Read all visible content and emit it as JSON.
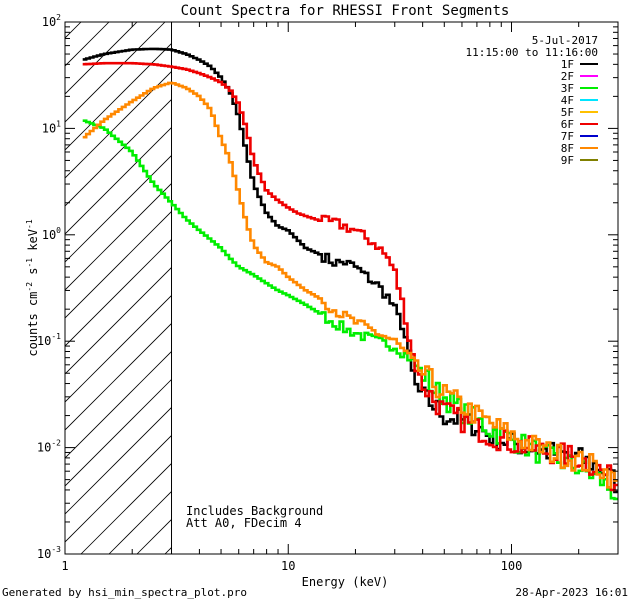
{
  "chart_data": {
    "type": "line",
    "title": "Count Spectra for RHESSI Front Segments",
    "xlabel": "Energy (keV)",
    "ylabel_parts": [
      "counts cm",
      "-2",
      " s",
      "-1",
      " keV",
      "-1"
    ],
    "xscale": "log",
    "yscale": "log",
    "xlim": [
      1,
      300
    ],
    "ylim": [
      0.001,
      100
    ],
    "x_ticks": [
      {
        "value": 1,
        "label": "1"
      },
      {
        "value": 10,
        "label": "10"
      },
      {
        "value": 100,
        "label": "100"
      }
    ],
    "y_ticks": [
      {
        "value": 0.001,
        "base": "10",
        "exp": "-3"
      },
      {
        "value": 0.01,
        "base": "10",
        "exp": "-2"
      },
      {
        "value": 0.1,
        "base": "10",
        "exp": "-1"
      },
      {
        "value": 1,
        "base": "10",
        "exp": "0"
      },
      {
        "value": 10,
        "base": "10",
        "exp": "1"
      },
      {
        "value": 100,
        "base": "10",
        "exp": "2"
      }
    ],
    "shaded_region": {
      "xmin": 1,
      "xmax": 3,
      "style": "diagonal-hatch"
    },
    "vertical_line_at": 3,
    "legend_header": [
      "5-Jul-2017",
      "11:15:00 to 11:16:00"
    ],
    "legend_position": "top-right",
    "annotations": [
      "Includes Background",
      "Att A0, FDecim 4"
    ],
    "series": [
      {
        "name": "1F",
        "color": "#000000",
        "x": [
          1.2,
          1.5,
          2,
          2.5,
          3,
          3.5,
          4,
          4.5,
          5,
          5.5,
          6,
          6.5,
          7,
          8,
          9,
          10,
          11,
          12,
          14,
          16,
          18,
          20,
          22,
          25,
          28,
          30,
          33,
          35,
          37,
          40,
          45,
          50,
          60,
          70,
          80,
          100,
          120,
          150,
          200,
          250,
          300
        ],
        "y": [
          44,
          50,
          55,
          56,
          55,
          50,
          44,
          38,
          30,
          22,
          13,
          6,
          3,
          1.6,
          1.2,
          1.1,
          0.9,
          0.75,
          0.65,
          0.55,
          0.55,
          0.5,
          0.42,
          0.34,
          0.26,
          0.2,
          0.13,
          0.07,
          0.04,
          0.03,
          0.025,
          0.02,
          0.018,
          0.016,
          0.013,
          0.011,
          0.01,
          0.009,
          0.008,
          0.0065,
          0.0045
        ]
      },
      {
        "name": "2F",
        "color": "#ff00ff",
        "x": [],
        "y": []
      },
      {
        "name": "3F",
        "color": "#00ee00",
        "x": [
          1.2,
          1.5,
          2,
          2.5,
          3,
          3.5,
          4,
          4.5,
          5,
          5.5,
          6,
          7,
          8,
          9,
          10,
          12,
          14,
          16,
          18,
          20,
          22,
          25,
          30,
          35,
          40,
          45,
          50,
          60,
          70,
          80,
          100,
          120,
          150,
          200,
          250,
          300
        ],
        "y": [
          12,
          10,
          6,
          3,
          2,
          1.4,
          1.1,
          0.9,
          0.75,
          0.6,
          0.5,
          0.42,
          0.35,
          0.3,
          0.27,
          0.22,
          0.18,
          0.15,
          0.13,
          0.12,
          0.11,
          0.1,
          0.09,
          0.07,
          0.05,
          0.035,
          0.03,
          0.022,
          0.018,
          0.015,
          0.012,
          0.01,
          0.008,
          0.0065,
          0.005,
          0.0035
        ]
      },
      {
        "name": "4F",
        "color": "#00e5ff",
        "x": [],
        "y": []
      },
      {
        "name": "5F",
        "color": "#ffc000",
        "x": [],
        "y": []
      },
      {
        "name": "6F",
        "color": "#ee0000",
        "x": [
          1.2,
          1.5,
          2,
          2.5,
          3,
          3.5,
          4,
          4.5,
          5,
          5.5,
          6,
          6.5,
          7,
          8,
          9,
          10,
          11,
          12,
          14,
          16,
          18,
          20,
          22,
          25,
          28,
          30,
          33,
          35,
          37,
          40,
          45,
          50,
          60,
          70,
          80,
          100,
          120,
          150,
          200,
          250,
          300
        ],
        "y": [
          40,
          41,
          41,
          40,
          38,
          36,
          33,
          30,
          27,
          23,
          17,
          10,
          5,
          2.6,
          2.1,
          1.8,
          1.6,
          1.5,
          1.35,
          1.3,
          1.2,
          1.1,
          0.95,
          0.8,
          0.6,
          0.45,
          0.2,
          0.1,
          0.06,
          0.04,
          0.028,
          0.022,
          0.018,
          0.015,
          0.013,
          0.011,
          0.01,
          0.009,
          0.008,
          0.0062,
          0.0045
        ]
      },
      {
        "name": "7F",
        "color": "#0000cc",
        "x": [],
        "y": []
      },
      {
        "name": "8F",
        "color": "#ff8800",
        "x": [
          1.2,
          1.5,
          2,
          2.5,
          3,
          3.5,
          4,
          4.5,
          5,
          5.5,
          6,
          6.5,
          7,
          8,
          9,
          10,
          12,
          14,
          16,
          18,
          20,
          25,
          30,
          35,
          40,
          45,
          50,
          60,
          70,
          80,
          100,
          120,
          150,
          200,
          250,
          300
        ],
        "y": [
          8,
          12,
          18,
          24,
          27,
          24,
          20,
          15,
          8,
          5,
          2.5,
          1.3,
          0.8,
          0.55,
          0.5,
          0.4,
          0.3,
          0.25,
          0.2,
          0.17,
          0.15,
          0.12,
          0.1,
          0.07,
          0.05,
          0.04,
          0.032,
          0.025,
          0.02,
          0.017,
          0.013,
          0.011,
          0.009,
          0.0075,
          0.0065,
          0.0045
        ]
      },
      {
        "name": "9F",
        "color": "#808000",
        "x": [],
        "y": []
      }
    ]
  },
  "footer": {
    "left": "Generated by hsi_min_spectra_plot.pro",
    "right": "28-Apr-2023 16:01"
  }
}
